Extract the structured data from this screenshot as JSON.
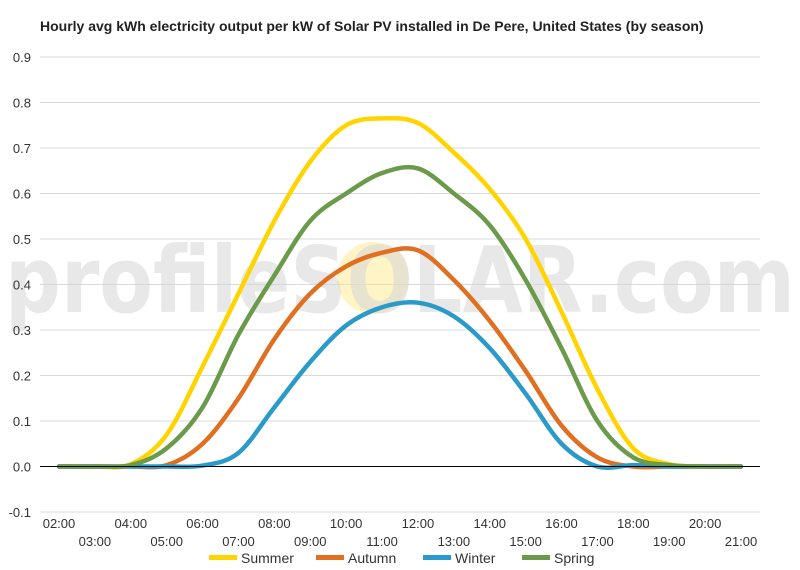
{
  "chart_data": {
    "type": "line",
    "title": "Hourly avg kWh electricity output per kW of Solar PV installed in De Pere, United States (by season)",
    "watermark": "profileSOLAR.com",
    "x": [
      "02:00",
      "03:00",
      "04:00",
      "05:00",
      "06:00",
      "07:00",
      "08:00",
      "09:00",
      "10:00",
      "11:00",
      "12:00",
      "13:00",
      "14:00",
      "15:00",
      "16:00",
      "17:00",
      "18:00",
      "19:00",
      "20:00",
      "21:00"
    ],
    "ylim": [
      -0.1,
      0.9
    ],
    "yticks": [
      "-0.1",
      "0.0",
      "0.1",
      "0.2",
      "0.3",
      "0.4",
      "0.5",
      "0.6",
      "0.7",
      "0.8",
      "0.9"
    ],
    "grid": true,
    "legend": "bottom",
    "series": [
      {
        "name": "Summer",
        "color": "#FFD400",
        "values": [
          0,
          0,
          0.005,
          0.07,
          0.22,
          0.38,
          0.54,
          0.67,
          0.75,
          0.765,
          0.755,
          0.69,
          0.61,
          0.5,
          0.34,
          0.17,
          0.04,
          0.005,
          0,
          0
        ]
      },
      {
        "name": "Autumn",
        "color": "#E07020",
        "values": [
          0,
          0,
          0,
          0.003,
          0.05,
          0.15,
          0.28,
          0.38,
          0.44,
          0.47,
          0.475,
          0.41,
          0.32,
          0.21,
          0.09,
          0.02,
          0,
          0,
          0,
          0
        ]
      },
      {
        "name": "Winter",
        "color": "#2A9BC8",
        "values": [
          0,
          0,
          0,
          0,
          0.002,
          0.03,
          0.13,
          0.23,
          0.31,
          0.35,
          0.36,
          0.33,
          0.26,
          0.16,
          0.05,
          0,
          0.003,
          0,
          0,
          0
        ]
      },
      {
        "name": "Spring",
        "color": "#6A9A4A",
        "values": [
          0,
          0,
          0.003,
          0.04,
          0.13,
          0.29,
          0.42,
          0.54,
          0.6,
          0.645,
          0.655,
          0.6,
          0.53,
          0.41,
          0.26,
          0.1,
          0.02,
          0.003,
          0,
          0
        ]
      }
    ]
  }
}
